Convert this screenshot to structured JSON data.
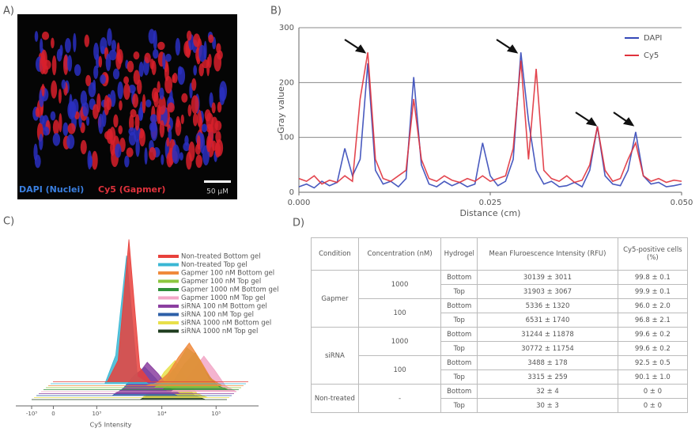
{
  "panel_labels": [
    "A)",
    "B)",
    "C)",
    "D)"
  ],
  "image_a": {
    "legend_dapi": "DAPI (Nuclei)",
    "legend_cy5": "Cy5 (Gapmer)",
    "scale_bar": "50 μM"
  },
  "chart_data": [
    {
      "type": "line",
      "x_label": "Distance (cm)",
      "y_label": "Gray value",
      "x": [
        0,
        0.001,
        0.002,
        0.003,
        0.004,
        0.005,
        0.006,
        0.007,
        0.008,
        0.009,
        0.01,
        0.011,
        0.012,
        0.013,
        0.014,
        0.015,
        0.016,
        0.017,
        0.018,
        0.019,
        0.02,
        0.021,
        0.022,
        0.023,
        0.024,
        0.025,
        0.026,
        0.027,
        0.028,
        0.029,
        0.03,
        0.031,
        0.032,
        0.033,
        0.034,
        0.035,
        0.036,
        0.037,
        0.038,
        0.039,
        0.04,
        0.041,
        0.042,
        0.043,
        0.044,
        0.045,
        0.046,
        0.047,
        0.048,
        0.049,
        0.05
      ],
      "series": [
        {
          "name": "DAPI",
          "color": "#3548b8",
          "values": [
            10,
            15,
            8,
            20,
            12,
            18,
            80,
            30,
            60,
            235,
            40,
            15,
            20,
            10,
            25,
            210,
            50,
            15,
            10,
            20,
            12,
            18,
            10,
            15,
            90,
            30,
            12,
            20,
            60,
            255,
            130,
            40,
            15,
            20,
            10,
            12,
            18,
            10,
            40,
            120,
            30,
            15,
            12,
            40,
            110,
            30,
            15,
            18,
            10,
            12,
            15
          ]
        },
        {
          "name": "Cy5",
          "color": "#e0323c",
          "values": [
            25,
            20,
            30,
            15,
            22,
            18,
            30,
            20,
            170,
            255,
            60,
            25,
            20,
            30,
            40,
            170,
            60,
            25,
            20,
            30,
            22,
            18,
            25,
            20,
            30,
            20,
            25,
            30,
            80,
            240,
            60,
            225,
            40,
            25,
            20,
            30,
            18,
            22,
            50,
            120,
            40,
            20,
            25,
            60,
            90,
            30,
            20,
            25,
            18,
            22,
            20
          ]
        }
      ],
      "xlim": [
        0,
        0.05
      ],
      "xticks": [
        {
          "value": 0,
          "label": "0.000"
        },
        {
          "value": 0.025,
          "label": "0.025"
        },
        {
          "value": 0.05,
          "label": "0.050"
        }
      ],
      "ylim": [
        0,
        300
      ],
      "yticks": [
        0,
        100,
        200,
        300
      ],
      "grid": true,
      "legend": "upper right"
    },
    {
      "type": "ridge",
      "x_label": "Cy5 Intensity",
      "x": [
        0,
        0.25,
        0.5,
        0.75,
        1,
        1.25,
        1.5,
        1.75,
        2,
        2.25,
        2.5,
        2.75,
        3,
        3.25,
        3.5,
        3.75,
        4,
        4.25,
        4.5
      ],
      "series": [
        {
          "name": "Non-treated Bottom gel",
          "color": "#e8413c",
          "values": [
            0,
            0,
            0,
            0,
            0,
            0,
            15,
            100,
            10,
            0,
            0,
            0,
            0,
            0,
            0,
            0,
            0,
            0,
            0
          ]
        },
        {
          "name": "Non-treated Top gel",
          "color": "#3ab7d4",
          "values": [
            0,
            0,
            0,
            0,
            0,
            0,
            20,
            90,
            5,
            0,
            0,
            0,
            0,
            0,
            0,
            0,
            0,
            0,
            0
          ]
        },
        {
          "name": "Gapmer 100 nM Bottom gel",
          "color": "#f08a3c",
          "values": [
            0,
            0,
            0,
            0,
            0,
            0,
            0,
            0,
            0,
            0,
            2,
            8,
            20,
            30,
            18,
            5,
            0,
            0,
            0
          ]
        },
        {
          "name": "Gapmer 100 nM Top gel",
          "color": "#8cc63f",
          "values": [
            0,
            0,
            0,
            0,
            0,
            0,
            0,
            0,
            0,
            0,
            0,
            5,
            15,
            28,
            22,
            6,
            0,
            0,
            0
          ]
        },
        {
          "name": "Gapmer 1000 nM Bottom gel",
          "color": "#2f8f3a",
          "values": [
            0,
            0,
            0,
            0,
            0,
            0,
            0,
            0,
            0,
            0,
            0,
            0,
            6,
            18,
            26,
            12,
            3,
            0,
            0
          ]
        },
        {
          "name": "Gapmer 1000 nM Top gel",
          "color": "#f2a7c7",
          "values": [
            0,
            0,
            0,
            0,
            0,
            0,
            0,
            0,
            0,
            0,
            0,
            0,
            0,
            5,
            15,
            25,
            15,
            4,
            0
          ]
        },
        {
          "name": "siRNA 100 nM Bottom gel",
          "color": "#8b3fa0",
          "values": [
            0,
            0,
            0,
            0,
            0,
            0,
            0,
            0,
            4,
            12,
            22,
            14,
            4,
            0,
            0,
            0,
            0,
            0,
            0
          ]
        },
        {
          "name": "siRNA 100 nM Top gel",
          "color": "#2d5fa8",
          "values": [
            0,
            0,
            0,
            0,
            0,
            0,
            0,
            0,
            5,
            14,
            20,
            12,
            3,
            0,
            0,
            0,
            0,
            0,
            0
          ]
        },
        {
          "name": "siRNA 1000 nM Bottom gel",
          "color": "#e8e04a",
          "values": [
            0,
            0,
            0,
            0,
            0,
            0,
            0,
            0,
            0,
            0,
            0,
            6,
            18,
            26,
            14,
            3,
            0,
            0,
            0
          ]
        },
        {
          "name": "siRNA 1000 nM Top gel",
          "color": "#1f3d1f",
          "values": [
            0,
            0,
            0,
            0,
            0,
            0,
            0,
            0,
            0,
            0,
            0,
            4,
            14,
            22,
            12,
            3,
            0,
            0,
            0
          ]
        }
      ],
      "xlim": [
        0,
        4.5
      ],
      "xticks": [
        {
          "value": 0,
          "label": "-10³"
        },
        {
          "value": 0.5,
          "label": "0"
        },
        {
          "value": 1.5,
          "label": "10³"
        },
        {
          "value": 3,
          "label": "10⁴"
        },
        {
          "value": 4.25,
          "label": "10⁵"
        }
      ],
      "ylim": [
        0,
        100
      ]
    }
  ],
  "table": {
    "headers": [
      "Condition",
      "Concentration (nM)",
      "Hydrogel",
      "Mean Fluroescence Intensity (RFU)",
      "Cy5-positive cells (%)"
    ],
    "groups": [
      {
        "condition": "Gapmer",
        "subgroups": [
          {
            "concentration": "1000",
            "rows": [
              [
                "Bottom",
                "30139 ± 3011",
                "99.8 ± 0.1"
              ],
              [
                "Top",
                "31903 ± 3067",
                "99.9 ± 0.1"
              ]
            ]
          },
          {
            "concentration": "100",
            "rows": [
              [
                "Bottom",
                "5336 ± 1320",
                "96.0 ± 2.0"
              ],
              [
                "Top",
                "6531 ± 1740",
                "96.8 ± 2.1"
              ]
            ]
          }
        ]
      },
      {
        "condition": "siRNA",
        "subgroups": [
          {
            "concentration": "1000",
            "rows": [
              [
                "Bottom",
                "31244 ± 11878",
                "99.6 ± 0.2"
              ],
              [
                "Top",
                "30772 ± 11754",
                "99.6 ± 0.2"
              ]
            ]
          },
          {
            "concentration": "100",
            "rows": [
              [
                "Bottom",
                "3488 ± 178",
                "92.5 ± 0.5"
              ],
              [
                "Top",
                "3315 ± 259",
                "90.1 ± 1.0"
              ]
            ]
          }
        ]
      },
      {
        "condition": "Non-treated",
        "subgroups": [
          {
            "concentration": "-",
            "rows": [
              [
                "Bottom",
                "32 ± 4",
                "0 ± 0"
              ],
              [
                "Top",
                "30 ± 3",
                "0 ± 0"
              ]
            ]
          }
        ]
      }
    ]
  }
}
